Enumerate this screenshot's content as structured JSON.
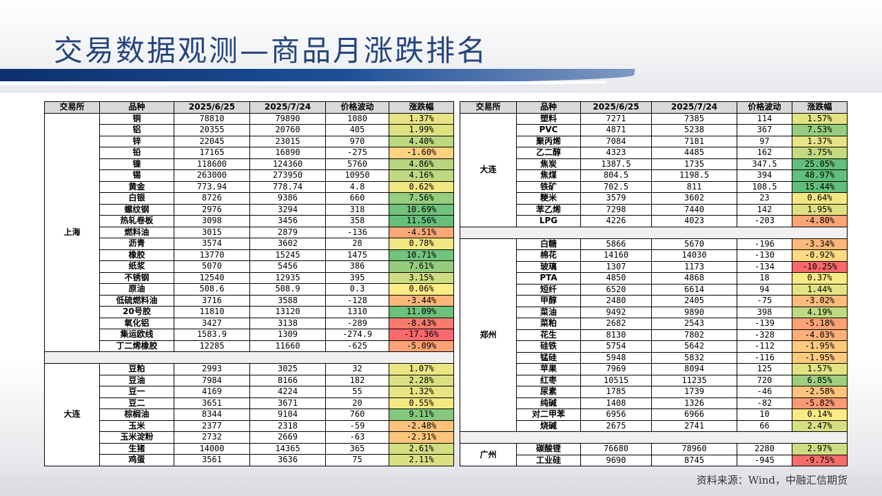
{
  "title": "交易数据观测—商品月涨跌排名",
  "source": "资料来源：Wind，中融汇信期货",
  "headers": [
    "交易所",
    "品种",
    "2025/6/25",
    "2025/7/24",
    "价格波动",
    "涨跌幅"
  ],
  "left_groups": [
    {
      "exchange": "上海",
      "rows": [
        [
          "铜",
          "78810",
          "79890",
          "1080",
          "1.37%"
        ],
        [
          "铝",
          "20355",
          "20760",
          "405",
          "1.99%"
        ],
        [
          "锌",
          "22045",
          "23015",
          "970",
          "4.40%"
        ],
        [
          "铅",
          "17165",
          "16890",
          "-275",
          "-1.60%"
        ],
        [
          "镍",
          "118600",
          "124360",
          "5760",
          "4.86%"
        ],
        [
          "锡",
          "263000",
          "273950",
          "10950",
          "4.16%"
        ],
        [
          "黄金",
          "773.94",
          "778.74",
          "4.8",
          "0.62%"
        ],
        [
          "白银",
          "8726",
          "9386",
          "660",
          "7.56%"
        ],
        [
          "螺纹钢",
          "2976",
          "3294",
          "318",
          "10.69%"
        ],
        [
          "热轧卷板",
          "3098",
          "3456",
          "358",
          "11.56%"
        ],
        [
          "燃料油",
          "3015",
          "2879",
          "-136",
          "-4.51%"
        ],
        [
          "沥青",
          "3574",
          "3602",
          "28",
          "0.78%"
        ],
        [
          "橡胶",
          "13770",
          "15245",
          "1475",
          "10.71%"
        ],
        [
          "纸浆",
          "5070",
          "5456",
          "386",
          "7.61%"
        ],
        [
          "不锈钢",
          "12540",
          "12935",
          "395",
          "3.15%"
        ],
        [
          "原油",
          "508.6",
          "508.9",
          "0.3",
          "0.06%"
        ],
        [
          "低硫燃料油",
          "3716",
          "3588",
          "-128",
          "-3.44%"
        ],
        [
          "20号胶",
          "11810",
          "13120",
          "1310",
          "11.09%"
        ],
        [
          "氧化铝",
          "3427",
          "3138",
          "-289",
          "-8.43%"
        ],
        [
          "集运欧线",
          "1583.9",
          "1309",
          "-274.9",
          "-17.36%"
        ],
        [
          "丁二烯橡胶",
          "12285",
          "11660",
          "-625",
          "-5.09%"
        ]
      ]
    },
    {
      "exchange": "大连",
      "rows": [
        [
          "豆粕",
          "2993",
          "3025",
          "32",
          "1.07%"
        ],
        [
          "豆油",
          "7984",
          "8166",
          "182",
          "2.28%"
        ],
        [
          "豆一",
          "4169",
          "4224",
          "55",
          "1.32%"
        ],
        [
          "豆二",
          "3651",
          "3671",
          "20",
          "0.55%"
        ],
        [
          "棕榈油",
          "8344",
          "9104",
          "760",
          "9.11%"
        ],
        [
          "玉米",
          "2377",
          "2318",
          "-59",
          "-2.48%"
        ],
        [
          "玉米淀粉",
          "2732",
          "2669",
          "-63",
          "-2.31%"
        ],
        [
          "生猪",
          "14000",
          "14365",
          "365",
          "2.61%"
        ],
        [
          "鸡蛋",
          "3561",
          "3636",
          "75",
          "2.11%"
        ]
      ]
    }
  ],
  "right_groups": [
    {
      "exchange": "大连",
      "rows": [
        [
          "塑料",
          "7271",
          "7385",
          "114",
          "1.57%"
        ],
        [
          "PVC",
          "4871",
          "5238",
          "367",
          "7.53%"
        ],
        [
          "聚丙烯",
          "7084",
          "7181",
          "97",
          "1.37%"
        ],
        [
          "乙二醇",
          "4323",
          "4485",
          "162",
          "3.75%"
        ],
        [
          "焦炭",
          "1387.5",
          "1735",
          "347.5",
          "25.05%"
        ],
        [
          "焦煤",
          "804.5",
          "1198.5",
          "394",
          "48.97%"
        ],
        [
          "铁矿",
          "702.5",
          "811",
          "108.5",
          "15.44%"
        ],
        [
          "粳米",
          "3579",
          "3602",
          "23",
          "0.64%"
        ],
        [
          "苯乙烯",
          "7298",
          "7440",
          "142",
          "1.95%"
        ],
        [
          "LPG",
          "4226",
          "4023",
          "-203",
          "-4.80%"
        ]
      ]
    },
    {
      "exchange": "郑州",
      "rows": [
        [
          "白糖",
          "5866",
          "5670",
          "-196",
          "-3.34%"
        ],
        [
          "棉花",
          "14160",
          "14030",
          "-130",
          "-0.92%"
        ],
        [
          "玻璃",
          "1307",
          "1173",
          "-134",
          "-10.25%"
        ],
        [
          "PTA",
          "4850",
          "4868",
          "18",
          "0.37%"
        ],
        [
          "短纤",
          "6520",
          "6614",
          "94",
          "1.44%"
        ],
        [
          "甲醇",
          "2480",
          "2405",
          "-75",
          "-3.02%"
        ],
        [
          "菜油",
          "9492",
          "9890",
          "398",
          "4.19%"
        ],
        [
          "菜粕",
          "2682",
          "2543",
          "-139",
          "-5.18%"
        ],
        [
          "花生",
          "8130",
          "7802",
          "-328",
          "-4.03%"
        ],
        [
          "硅铁",
          "5754",
          "5642",
          "-112",
          "-1.95%"
        ],
        [
          "锰硅",
          "5948",
          "5832",
          "-116",
          "-1.95%"
        ],
        [
          "苹果",
          "7969",
          "8094",
          "125",
          "1.57%"
        ],
        [
          "红枣",
          "10515",
          "11235",
          "720",
          "6.85%"
        ],
        [
          "尿素",
          "1785",
          "1739",
          "-46",
          "-2.58%"
        ],
        [
          "纯碱",
          "1408",
          "1326",
          "-82",
          "-5.82%"
        ],
        [
          "对二甲苯",
          "6956",
          "6966",
          "10",
          "0.14%"
        ],
        [
          "烧碱",
          "2675",
          "2741",
          "66",
          "2.47%"
        ]
      ]
    },
    {
      "exchange": "广州",
      "rows": [
        [
          "碳酸锂",
          "76680",
          "78960",
          "2280",
          "2.97%"
        ],
        [
          "工业硅",
          "9690",
          "8745",
          "-945",
          "-9.75%"
        ]
      ]
    }
  ],
  "colors": {
    "header_bg": "#d9d9d9",
    "title": "#26457d",
    "max_positive": "#63be7b",
    "zero": "#ffeb84",
    "max_negative": "#f8696b"
  }
}
